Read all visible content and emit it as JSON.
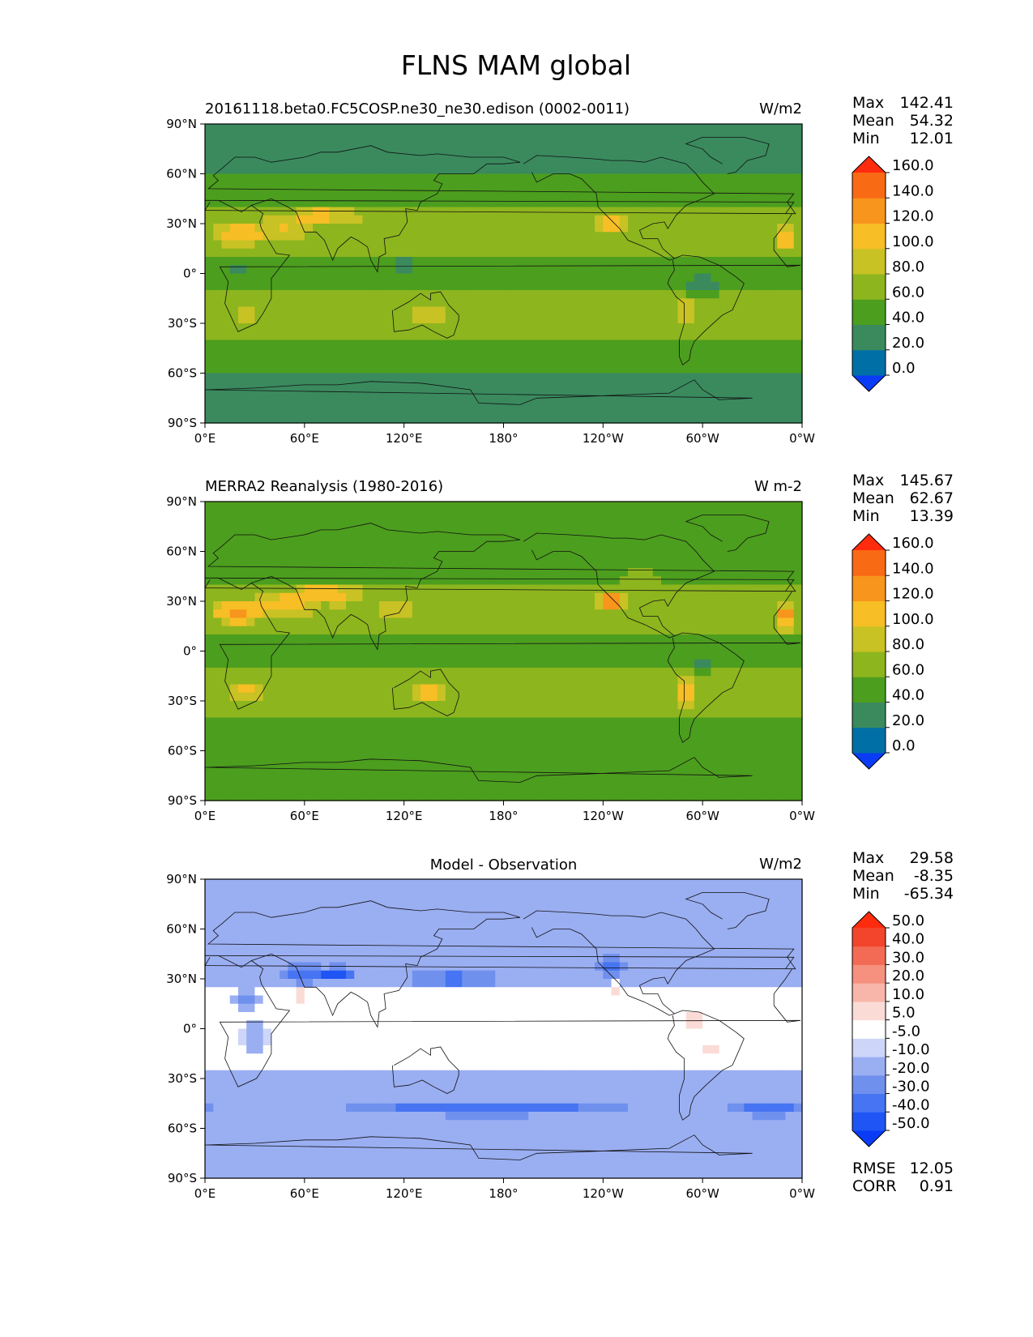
{
  "title": "FLNS MAM global",
  "chart_data": [
    {
      "type": "heatmap",
      "left_title": "20161118.beta0.FC5COSP.ne30_ne30.edison (0002-0011)",
      "center_title": "",
      "units": "W/m2",
      "stats": [
        {
          "label": "Max",
          "value": "142.41"
        },
        {
          "label": "Mean",
          "value": "54.32"
        },
        {
          "label": "Min",
          "value": "12.01"
        }
      ],
      "colorbar_levels": [
        0,
        20,
        40,
        60,
        80,
        100,
        120,
        140,
        160
      ],
      "colorbar_labels": [
        "0.0",
        "20.0",
        "40.0",
        "60.0",
        "80.0",
        "100.0",
        "120.0",
        "140.0",
        "160.0"
      ],
      "colorbar_colors": [
        "#0a3bf5",
        "#006fa6",
        "#3a8a5e",
        "#4c9e1e",
        "#8db51e",
        "#c8c224",
        "#f7be25",
        "#f7951c",
        "#f96a14",
        "#ff2b0e"
      ],
      "xticks": [
        "0°E",
        "60°E",
        "120°E",
        "180°",
        "120°W",
        "60°W",
        "0°W"
      ],
      "yticks": [
        "90°N",
        "60°N",
        "30°N",
        "0°",
        "30°S",
        "60°S",
        "90°S"
      ]
    },
    {
      "type": "heatmap",
      "left_title": "MERRA2 Reanalysis (1980-2016)",
      "center_title": "",
      "units": "W m-2",
      "stats": [
        {
          "label": "Max",
          "value": "145.67"
        },
        {
          "label": "Mean",
          "value": "62.67"
        },
        {
          "label": "Min",
          "value": "13.39"
        }
      ],
      "colorbar_levels": [
        0,
        20,
        40,
        60,
        80,
        100,
        120,
        140,
        160
      ],
      "colorbar_labels": [
        "0.0",
        "20.0",
        "40.0",
        "60.0",
        "80.0",
        "100.0",
        "120.0",
        "140.0",
        "160.0"
      ],
      "colorbar_colors": [
        "#0a3bf5",
        "#006fa6",
        "#3a8a5e",
        "#4c9e1e",
        "#8db51e",
        "#c8c224",
        "#f7be25",
        "#f7951c",
        "#f96a14",
        "#ff2b0e"
      ],
      "xticks": [
        "0°E",
        "60°E",
        "120°E",
        "180°",
        "120°W",
        "60°W",
        "0°W"
      ],
      "yticks": [
        "90°N",
        "60°N",
        "30°N",
        "0°",
        "30°S",
        "60°S",
        "90°S"
      ]
    },
    {
      "type": "heatmap",
      "left_title": "",
      "center_title": "Model - Observation",
      "units": "W/m2",
      "stats": [
        {
          "label": "Max",
          "value": "29.58"
        },
        {
          "label": "Mean",
          "value": "-8.35"
        },
        {
          "label": "Min",
          "value": "-65.34"
        }
      ],
      "extra_stats": [
        {
          "label": "RMSE",
          "value": "12.05"
        },
        {
          "label": "CORR",
          "value": "0.91"
        }
      ],
      "colorbar_levels": [
        -50,
        -40,
        -30,
        -20,
        -10,
        -5,
        5,
        10,
        20,
        30,
        40,
        50
      ],
      "colorbar_labels": [
        "-50.0",
        "-40.0",
        "-30.0",
        "-20.0",
        "-10.0",
        "-5.0",
        "5.0",
        "10.0",
        "20.0",
        "30.0",
        "40.0",
        "50.0"
      ],
      "colorbar_colors": [
        "#0a3bf5",
        "#1f55f5",
        "#4674f2",
        "#7090ee",
        "#9aaef2",
        "#cdd6f8",
        "#ffffff",
        "#fbdbd6",
        "#f8b6aa",
        "#f6917f",
        "#f46b55",
        "#f2452c",
        "#ff2b0e"
      ],
      "xticks": [
        "0°E",
        "60°E",
        "120°E",
        "180°",
        "120°W",
        "60°W",
        "0°W"
      ],
      "yticks": [
        "90°N",
        "60°N",
        "30°N",
        "0°",
        "30°S",
        "60°S",
        "90°S"
      ]
    }
  ]
}
